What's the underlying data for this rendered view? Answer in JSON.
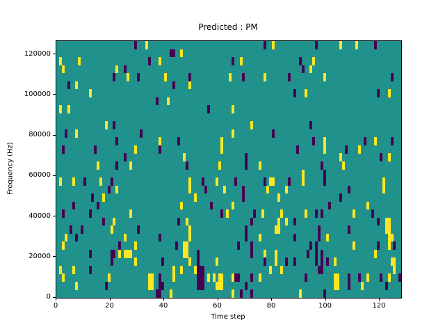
{
  "figure": {
    "title": "Predicted : PM",
    "xlabel": "Time step",
    "ylabel": "Frequency (Hz)"
  },
  "chart_data": {
    "type": "heatmap",
    "title": "Predicted : PM",
    "xlabel": "Time step",
    "ylabel": "Frequency (Hz)",
    "grid": {
      "cols": 128,
      "rows": 32,
      "row_order": "top-to-bottom"
    },
    "xlim": [
      0,
      128
    ],
    "ylim": [
      0,
      126700
    ],
    "x_ticks": [
      0,
      20,
      40,
      60,
      80,
      100,
      120
    ],
    "y_ticks": [
      0,
      20000,
      40000,
      60000,
      80000,
      100000,
      120000
    ],
    "legend": "none",
    "grid_lines": false,
    "colors": {
      "background": "#21918c",
      "y": "#fde725",
      "p": "#440154"
    },
    "color_meaning": {
      "background": "mid value",
      "y": "high value (yellow)",
      "p": "low value (dark purple)"
    },
    "cells": [
      [
        33,
        0,
        "y"
      ],
      [
        1,
        2,
        "y"
      ],
      [
        8,
        2,
        "y"
      ],
      [
        38,
        2,
        "y"
      ],
      [
        2,
        3,
        "y"
      ],
      [
        22,
        3,
        "y"
      ],
      [
        26,
        4,
        "y"
      ],
      [
        40,
        4,
        "y"
      ],
      [
        7,
        5,
        "y"
      ],
      [
        12,
        6,
        "y"
      ],
      [
        41,
        7,
        "y"
      ],
      [
        1,
        8,
        "y"
      ],
      [
        4,
        8,
        "y"
      ],
      [
        18,
        10,
        "y"
      ],
      [
        80,
        0,
        "y"
      ],
      [
        46,
        1,
        "y"
      ],
      [
        68,
        2,
        "y"
      ],
      [
        64,
        4,
        "y"
      ],
      [
        77,
        4,
        "y"
      ],
      [
        49,
        5,
        "y"
      ],
      [
        65,
        8,
        "y"
      ],
      [
        72,
        10,
        "y"
      ],
      [
        105,
        0,
        "y"
      ],
      [
        111,
        0,
        "y"
      ],
      [
        95,
        2,
        "y"
      ],
      [
        94,
        3,
        "y"
      ],
      [
        99,
        4,
        "y"
      ],
      [
        92,
        6,
        "y"
      ],
      [
        123,
        6,
        "y"
      ],
      [
        7,
        11,
        "y"
      ],
      [
        38,
        12,
        "y"
      ],
      [
        29,
        13,
        "y"
      ],
      [
        15,
        15,
        "y"
      ],
      [
        27,
        15,
        "y"
      ],
      [
        1,
        17,
        "y"
      ],
      [
        6,
        17,
        "y"
      ],
      [
        16,
        17,
        "y"
      ],
      [
        22,
        18,
        "y"
      ],
      [
        17,
        19,
        "y"
      ],
      [
        27,
        21,
        "y"
      ],
      [
        65,
        11,
        "y"
      ],
      [
        61,
        12,
        "y"
      ],
      [
        61,
        13,
        "y"
      ],
      [
        47,
        14,
        "y"
      ],
      [
        60,
        15,
        "y"
      ],
      [
        75,
        15,
        "y"
      ],
      [
        49,
        17,
        "y"
      ],
      [
        59,
        17,
        "y"
      ],
      [
        79,
        17,
        "y"
      ],
      [
        80,
        17,
        "y"
      ],
      [
        49,
        18,
        "y"
      ],
      [
        62,
        18,
        "y"
      ],
      [
        78,
        18,
        "y"
      ],
      [
        51,
        19,
        "y"
      ],
      [
        82,
        19,
        "y"
      ],
      [
        46,
        20,
        "y"
      ],
      [
        65,
        20,
        "y"
      ],
      [
        63,
        21,
        "y"
      ],
      [
        76,
        21,
        "y"
      ],
      [
        83,
        21,
        "y"
      ],
      [
        99,
        12,
        "y"
      ],
      [
        118,
        12,
        "y"
      ],
      [
        99,
        13,
        "y"
      ],
      [
        112,
        13,
        "y"
      ],
      [
        105,
        14,
        "y"
      ],
      [
        123,
        14,
        "y"
      ],
      [
        106,
        15,
        "y"
      ],
      [
        91,
        16,
        "y"
      ],
      [
        91,
        17,
        "y"
      ],
      [
        121,
        17,
        "y"
      ],
      [
        85,
        18,
        "y"
      ],
      [
        121,
        18,
        "y"
      ],
      [
        115,
        20,
        "y"
      ],
      [
        21,
        22,
        "y"
      ],
      [
        20,
        23,
        "y"
      ],
      [
        3,
        24,
        "y"
      ],
      [
        25,
        24,
        "y"
      ],
      [
        2,
        25,
        "y"
      ],
      [
        29,
        25,
        "y"
      ],
      [
        23,
        26,
        "y"
      ],
      [
        25,
        26,
        "y"
      ],
      [
        26,
        26,
        "y"
      ],
      [
        27,
        26,
        "y"
      ],
      [
        29,
        27,
        "y"
      ],
      [
        1,
        28,
        "y"
      ],
      [
        6,
        28,
        "y"
      ],
      [
        2,
        29,
        "y"
      ],
      [
        19,
        29,
        "y"
      ],
      [
        34,
        29,
        "y"
      ],
      [
        35,
        29,
        "y"
      ],
      [
        7,
        30,
        "y"
      ],
      [
        34,
        30,
        "y"
      ],
      [
        35,
        30,
        "y"
      ],
      [
        42,
        31,
        "y"
      ],
      [
        48,
        22,
        "y"
      ],
      [
        82,
        22,
        "y"
      ],
      [
        49,
        23,
        "y"
      ],
      [
        81,
        23,
        "y"
      ],
      [
        82,
        23,
        "y"
      ],
      [
        49,
        24,
        "y"
      ],
      [
        75,
        24,
        "y"
      ],
      [
        47,
        25,
        "y"
      ],
      [
        48,
        25,
        "y"
      ],
      [
        47,
        26,
        "y"
      ],
      [
        48,
        26,
        "y"
      ],
      [
        77,
        26,
        "y"
      ],
      [
        81,
        26,
        "y"
      ],
      [
        49,
        27,
        "y"
      ],
      [
        59,
        27,
        "y"
      ],
      [
        81,
        27,
        "y"
      ],
      [
        43,
        28,
        "y"
      ],
      [
        46,
        28,
        "y"
      ],
      [
        51,
        28,
        "y"
      ],
      [
        79,
        28,
        "y"
      ],
      [
        83,
        28,
        "y"
      ],
      [
        43,
        29,
        "y"
      ],
      [
        56,
        29,
        "y"
      ],
      [
        58,
        29,
        "y"
      ],
      [
        60,
        29,
        "y"
      ],
      [
        61,
        29,
        "y"
      ],
      [
        65,
        29,
        "y"
      ],
      [
        75,
        29,
        "y"
      ],
      [
        59,
        30,
        "y"
      ],
      [
        60,
        30,
        "y"
      ],
      [
        61,
        30,
        "y"
      ],
      [
        65,
        31,
        "y"
      ],
      [
        92,
        21,
        "y"
      ],
      [
        110,
        21,
        "y"
      ],
      [
        85,
        22,
        "y"
      ],
      [
        122,
        22,
        "y"
      ],
      [
        123,
        22,
        "y"
      ],
      [
        122,
        23,
        "y"
      ],
      [
        123,
        23,
        "y"
      ],
      [
        100,
        24,
        "y"
      ],
      [
        123,
        24,
        "y"
      ],
      [
        124,
        24,
        "y"
      ],
      [
        110,
        25,
        "y"
      ],
      [
        123,
        25,
        "y"
      ],
      [
        118,
        26,
        "y"
      ],
      [
        103,
        27,
        "y"
      ],
      [
        124,
        27,
        "y"
      ],
      [
        125,
        27,
        "y"
      ],
      [
        125,
        28,
        "y"
      ],
      [
        103,
        29,
        "y"
      ],
      [
        104,
        29,
        "y"
      ],
      [
        115,
        29,
        "y"
      ],
      [
        123,
        29,
        "y"
      ],
      [
        103,
        30,
        "y"
      ],
      [
        104,
        30,
        "y"
      ],
      [
        113,
        30,
        "y"
      ],
      [
        90,
        31,
        "y"
      ],
      [
        29,
        0,
        "p"
      ],
      [
        42,
        1,
        "p"
      ],
      [
        34,
        2,
        "p"
      ],
      [
        25,
        3,
        "p"
      ],
      [
        21,
        4,
        "p"
      ],
      [
        30,
        4,
        "p"
      ],
      [
        4,
        5,
        "p"
      ],
      [
        37,
        7,
        "p"
      ],
      [
        21,
        10,
        "p"
      ],
      [
        77,
        0,
        "p"
      ],
      [
        43,
        1,
        "p"
      ],
      [
        65,
        2,
        "p"
      ],
      [
        49,
        4,
        "p"
      ],
      [
        69,
        4,
        "p"
      ],
      [
        43,
        5,
        "p"
      ],
      [
        56,
        8,
        "p"
      ],
      [
        96,
        0,
        "p"
      ],
      [
        118,
        0,
        "p"
      ],
      [
        90,
        2,
        "p"
      ],
      [
        91,
        3,
        "p"
      ],
      [
        86,
        4,
        "p"
      ],
      [
        124,
        4,
        "p"
      ],
      [
        88,
        6,
        "p"
      ],
      [
        119,
        6,
        "p"
      ],
      [
        94,
        10,
        "p"
      ],
      [
        3,
        11,
        "p"
      ],
      [
        31,
        11,
        "p"
      ],
      [
        22,
        12,
        "p"
      ],
      [
        2,
        13,
        "p"
      ],
      [
        14,
        13,
        "p"
      ],
      [
        38,
        13,
        "p"
      ],
      [
        25,
        14,
        "p"
      ],
      [
        22,
        15,
        "p"
      ],
      [
        10,
        17,
        "p"
      ],
      [
        20,
        17,
        "p"
      ],
      [
        19,
        18,
        "p"
      ],
      [
        13,
        19,
        "p"
      ],
      [
        6,
        20,
        "p"
      ],
      [
        15,
        20,
        "p"
      ],
      [
        2,
        21,
        "p"
      ],
      [
        12,
        21,
        "p"
      ],
      [
        80,
        11,
        "p"
      ],
      [
        45,
        12,
        "p"
      ],
      [
        70,
        14,
        "p"
      ],
      [
        48,
        15,
        "p"
      ],
      [
        70,
        15,
        "p"
      ],
      [
        54,
        17,
        "p"
      ],
      [
        66,
        17,
        "p"
      ],
      [
        77,
        17,
        "p"
      ],
      [
        55,
        18,
        "p"
      ],
      [
        69,
        18,
        "p"
      ],
      [
        69,
        19,
        "p"
      ],
      [
        57,
        20,
        "p"
      ],
      [
        61,
        21,
        "p"
      ],
      [
        73,
        21,
        "p"
      ],
      [
        95,
        12,
        "p"
      ],
      [
        114,
        12,
        "p"
      ],
      [
        124,
        12,
        "p"
      ],
      [
        89,
        13,
        "p"
      ],
      [
        107,
        13,
        "p"
      ],
      [
        120,
        14,
        "p"
      ],
      [
        98,
        15,
        "p"
      ],
      [
        99,
        16,
        "p"
      ],
      [
        86,
        17,
        "p"
      ],
      [
        99,
        17,
        "p"
      ],
      [
        108,
        18,
        "p"
      ],
      [
        105,
        19,
        "p"
      ],
      [
        101,
        20,
        "p"
      ],
      [
        98,
        21,
        "p"
      ],
      [
        17,
        22,
        "p"
      ],
      [
        5,
        23,
        "p"
      ],
      [
        9,
        23,
        "p"
      ],
      [
        30,
        23,
        "p"
      ],
      [
        7,
        24,
        "p"
      ],
      [
        38,
        24,
        "p"
      ],
      [
        23,
        25,
        "p"
      ],
      [
        12,
        26,
        "p"
      ],
      [
        20,
        26,
        "p"
      ],
      [
        21,
        26,
        "p"
      ],
      [
        20,
        27,
        "p"
      ],
      [
        39,
        27,
        "p"
      ],
      [
        12,
        28,
        "p"
      ],
      [
        38,
        29,
        "p"
      ],
      [
        18,
        30,
        "p"
      ],
      [
        38,
        30,
        "p"
      ],
      [
        39,
        30,
        "p"
      ],
      [
        37,
        31,
        "p"
      ],
      [
        38,
        31,
        "p"
      ],
      [
        45,
        22,
        "p"
      ],
      [
        72,
        22,
        "p"
      ],
      [
        70,
        23,
        "p"
      ],
      [
        70,
        24,
        "p"
      ],
      [
        44,
        25,
        "p"
      ],
      [
        67,
        25,
        "p"
      ],
      [
        72,
        25,
        "p"
      ],
      [
        52,
        26,
        "p"
      ],
      [
        72,
        26,
        "p"
      ],
      [
        52,
        27,
        "p"
      ],
      [
        77,
        27,
        "p"
      ],
      [
        52,
        28,
        "p"
      ],
      [
        53,
        28,
        "p"
      ],
      [
        54,
        28,
        "p"
      ],
      [
        52,
        29,
        "p"
      ],
      [
        53,
        29,
        "p"
      ],
      [
        54,
        29,
        "p"
      ],
      [
        66,
        29,
        "p"
      ],
      [
        67,
        29,
        "p"
      ],
      [
        72,
        29,
        "p"
      ],
      [
        52,
        30,
        "p"
      ],
      [
        53,
        30,
        "p"
      ],
      [
        54,
        30,
        "p"
      ],
      [
        70,
        30,
        "p"
      ],
      [
        68,
        31,
        "p"
      ],
      [
        72,
        31,
        "p"
      ],
      [
        96,
        21,
        "p"
      ],
      [
        117,
        21,
        "p"
      ],
      [
        88,
        22,
        "p"
      ],
      [
        119,
        22,
        "p"
      ],
      [
        97,
        23,
        "p"
      ],
      [
        108,
        23,
        "p"
      ],
      [
        88,
        24,
        "p"
      ],
      [
        97,
        24,
        "p"
      ],
      [
        94,
        25,
        "p"
      ],
      [
        96,
        25,
        "p"
      ],
      [
        119,
        25,
        "p"
      ],
      [
        125,
        25,
        "p"
      ],
      [
        93,
        26,
        "p"
      ],
      [
        96,
        26,
        "p"
      ],
      [
        98,
        26,
        "p"
      ],
      [
        85,
        27,
        "p"
      ],
      [
        88,
        27,
        "p"
      ],
      [
        96,
        27,
        "p"
      ],
      [
        98,
        27,
        "p"
      ],
      [
        100,
        27,
        "p"
      ],
      [
        97,
        28,
        "p"
      ],
      [
        98,
        28,
        "p"
      ],
      [
        92,
        29,
        "p"
      ],
      [
        108,
        29,
        "p"
      ],
      [
        112,
        29,
        "p"
      ],
      [
        120,
        29,
        "p"
      ],
      [
        127,
        29,
        "p"
      ],
      [
        108,
        30,
        "p"
      ],
      [
        122,
        30,
        "p"
      ],
      [
        99,
        31,
        "p"
      ]
    ]
  }
}
